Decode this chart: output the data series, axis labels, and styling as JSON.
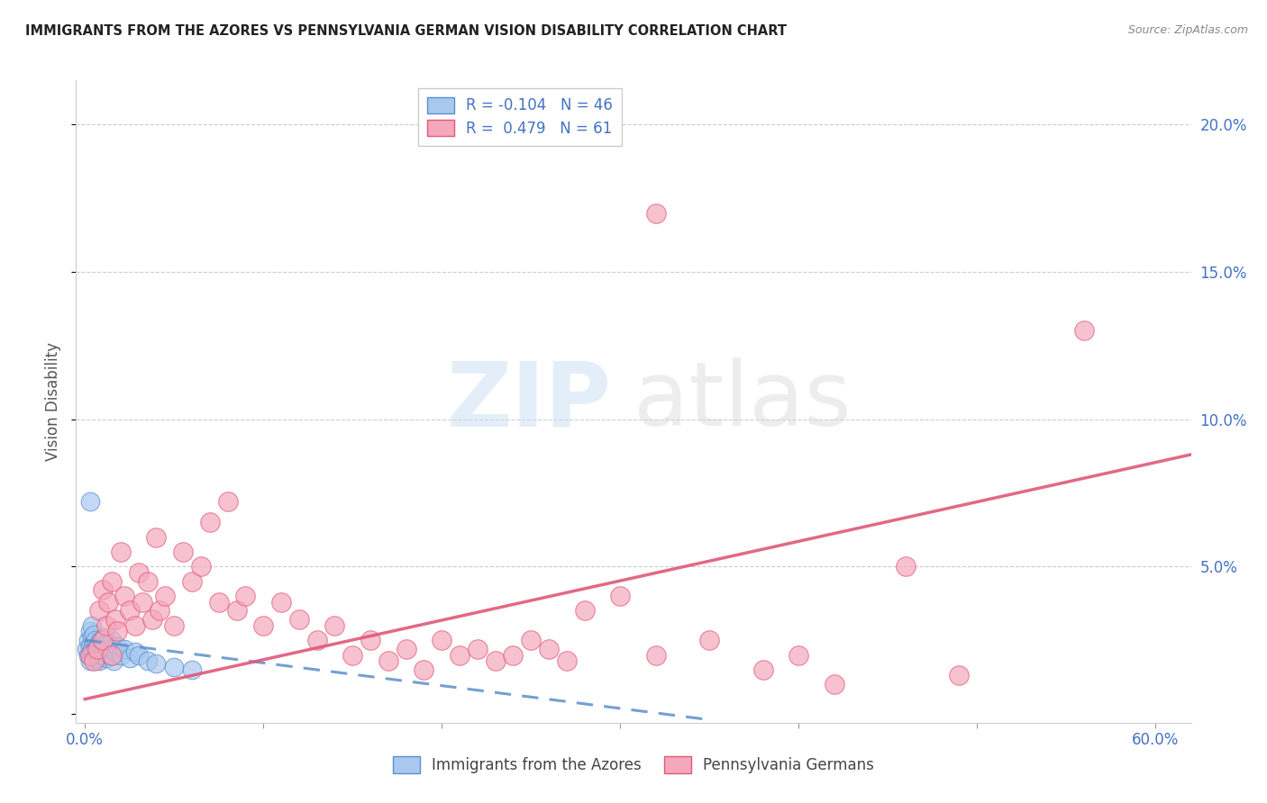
{
  "title": "IMMIGRANTS FROM THE AZORES VS PENNSYLVANIA GERMAN VISION DISABILITY CORRELATION CHART",
  "source": "Source: ZipAtlas.com",
  "ylabel": "Vision Disability",
  "xlim": [
    -0.005,
    0.62
  ],
  "ylim": [
    -0.003,
    0.215
  ],
  "blue_label": "Immigrants from the Azores",
  "pink_label": "Pennsylvania Germans",
  "blue_R": -0.104,
  "blue_N": 46,
  "pink_R": 0.479,
  "pink_N": 61,
  "blue_color": "#A8C8F0",
  "pink_color": "#F5A8BC",
  "blue_line_color": "#5B8FCC",
  "pink_line_color": "#E05878",
  "background_color": "#ffffff",
  "blue_scatter_x": [
    0.001,
    0.002,
    0.002,
    0.003,
    0.003,
    0.003,
    0.004,
    0.004,
    0.004,
    0.004,
    0.005,
    0.005,
    0.005,
    0.005,
    0.006,
    0.006,
    0.006,
    0.007,
    0.007,
    0.007,
    0.008,
    0.008,
    0.009,
    0.009,
    0.01,
    0.01,
    0.011,
    0.011,
    0.012,
    0.012,
    0.013,
    0.014,
    0.015,
    0.016,
    0.017,
    0.018,
    0.02,
    0.022,
    0.025,
    0.028,
    0.03,
    0.035,
    0.04,
    0.05,
    0.06,
    0.003
  ],
  "blue_scatter_y": [
    0.022,
    0.02,
    0.025,
    0.018,
    0.023,
    0.028,
    0.02,
    0.022,
    0.026,
    0.03,
    0.019,
    0.024,
    0.021,
    0.027,
    0.022,
    0.025,
    0.02,
    0.023,
    0.019,
    0.021,
    0.024,
    0.018,
    0.022,
    0.025,
    0.02,
    0.023,
    0.021,
    0.026,
    0.019,
    0.024,
    0.022,
    0.02,
    0.025,
    0.018,
    0.021,
    0.023,
    0.02,
    0.022,
    0.019,
    0.021,
    0.02,
    0.018,
    0.017,
    0.016,
    0.015,
    0.072
  ],
  "pink_scatter_x": [
    0.003,
    0.005,
    0.007,
    0.008,
    0.01,
    0.01,
    0.012,
    0.013,
    0.015,
    0.015,
    0.017,
    0.018,
    0.02,
    0.022,
    0.025,
    0.028,
    0.03,
    0.032,
    0.035,
    0.038,
    0.04,
    0.042,
    0.045,
    0.05,
    0.055,
    0.06,
    0.065,
    0.07,
    0.075,
    0.08,
    0.085,
    0.09,
    0.1,
    0.11,
    0.12,
    0.13,
    0.14,
    0.15,
    0.16,
    0.17,
    0.18,
    0.19,
    0.2,
    0.21,
    0.22,
    0.23,
    0.24,
    0.25,
    0.26,
    0.27,
    0.28,
    0.3,
    0.32,
    0.35,
    0.38,
    0.4,
    0.42,
    0.46,
    0.49,
    0.32,
    0.56
  ],
  "pink_scatter_y": [
    0.02,
    0.018,
    0.022,
    0.035,
    0.025,
    0.042,
    0.03,
    0.038,
    0.045,
    0.02,
    0.032,
    0.028,
    0.055,
    0.04,
    0.035,
    0.03,
    0.048,
    0.038,
    0.045,
    0.032,
    0.06,
    0.035,
    0.04,
    0.03,
    0.055,
    0.045,
    0.05,
    0.065,
    0.038,
    0.072,
    0.035,
    0.04,
    0.03,
    0.038,
    0.032,
    0.025,
    0.03,
    0.02,
    0.025,
    0.018,
    0.022,
    0.015,
    0.025,
    0.02,
    0.022,
    0.018,
    0.02,
    0.025,
    0.022,
    0.018,
    0.035,
    0.04,
    0.02,
    0.025,
    0.015,
    0.02,
    0.01,
    0.05,
    0.013,
    0.17,
    0.13
  ],
  "pink_line_x0": 0.0,
  "pink_line_y0": 0.005,
  "pink_line_x1": 0.62,
  "pink_line_y1": 0.088,
  "blue_line_x0": 0.0,
  "blue_line_y0": 0.025,
  "blue_line_x1": 0.35,
  "blue_line_y1": -0.002
}
